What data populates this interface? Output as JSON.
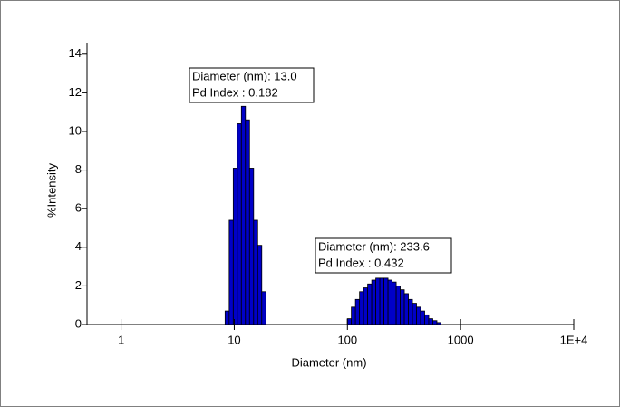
{
  "chart_data": {
    "type": "histogram",
    "x_label": "Diameter (nm)",
    "y_label": "%Intensity",
    "xscale": "log",
    "color": "#0000c8",
    "edgecolor": "#000000",
    "xlim": [
      0.5,
      10000
    ],
    "ylim": [
      0,
      14.6
    ],
    "xticks": [
      1,
      10,
      100,
      1000,
      {
        "value": 10000,
        "label": "1E+4"
      }
    ],
    "yticks": [
      0,
      2,
      4,
      6,
      8,
      10,
      12,
      14
    ],
    "bins": [
      8.3,
      9.02,
      9.8,
      10.64,
      11.56,
      12.56,
      13.65,
      14.83,
      16.11,
      17.5,
      19.01,
      20.65,
      22.44,
      24.38,
      26.48,
      28.77,
      31.26,
      33.96,
      36.89,
      40.08,
      43.54,
      47.3,
      51.39,
      55.83,
      60.65,
      65.89,
      71.58,
      77.77,
      84.49,
      91.79,
      99.72,
      108.3,
      117.7,
      127.9,
      138.9,
      150.9,
      164.0,
      178.1,
      193.5,
      210.2,
      228.4,
      248.1,
      269.6,
      292.8,
      318.1,
      345.6,
      375.5,
      407.9,
      443.2,
      481.5,
      523.0,
      568.2,
      617.3,
      670.7
    ],
    "values": [
      0.7,
      5.4,
      8.1,
      10.4,
      11.3,
      10.6,
      8.1,
      5.4,
      4.1,
      1.7,
      0,
      0,
      0,
      0,
      0,
      0,
      0,
      0,
      0,
      0,
      0,
      0,
      0,
      0,
      0,
      0,
      0,
      0,
      0,
      0,
      0.3,
      0.9,
      1.3,
      1.7,
      1.9,
      2.1,
      2.3,
      2.4,
      2.4,
      2.4,
      2.3,
      2.2,
      2.0,
      1.8,
      1.6,
      1.3,
      1.1,
      0.9,
      0.7,
      0.5,
      0.3,
      0.2,
      0.1
    ],
    "annotations": [
      {
        "lines": [
          "Diameter (nm): 13.0",
          "Pd Index : 0.182"
        ]
      },
      {
        "lines": [
          "Diameter (nm): 233.6",
          "Pd Index : 0.432"
        ]
      }
    ]
  }
}
